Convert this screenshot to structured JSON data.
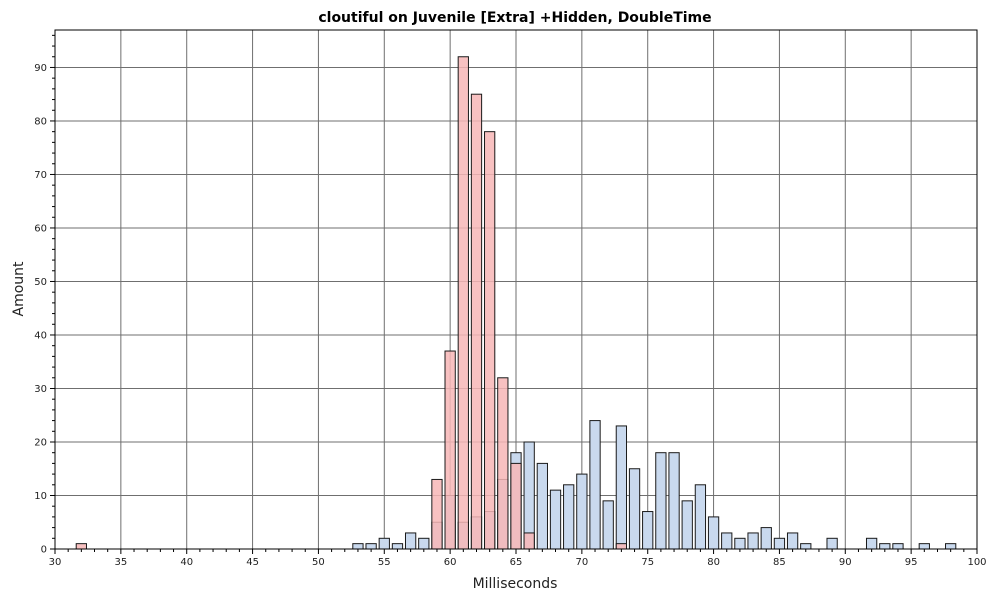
{
  "chart_data": {
    "type": "bar",
    "title": "cloutiful on Juvenile [Extra] +Hidden, DoubleTime",
    "xlabel": "Milliseconds",
    "ylabel": "Amount",
    "xlim": [
      30,
      100
    ],
    "ylim": [
      0,
      97
    ],
    "x_ticks": [
      30,
      35,
      40,
      45,
      50,
      55,
      60,
      65,
      70,
      75,
      80,
      85,
      90,
      95,
      100
    ],
    "y_ticks": [
      0,
      10,
      20,
      30,
      40,
      50,
      60,
      70,
      80,
      90
    ],
    "grid": true,
    "legend": "none",
    "series": [
      {
        "color": "#c9d9ee",
        "points": [
          {
            "x": 53,
            "y": 1
          },
          {
            "x": 54,
            "y": 1
          },
          {
            "x": 55,
            "y": 2
          },
          {
            "x": 56,
            "y": 1
          },
          {
            "x": 57,
            "y": 3
          },
          {
            "x": 58,
            "y": 2
          },
          {
            "x": 59,
            "y": 5
          },
          {
            "x": 60,
            "y": 10
          },
          {
            "x": 61,
            "y": 5
          },
          {
            "x": 62,
            "y": 6
          },
          {
            "x": 63,
            "y": 7
          },
          {
            "x": 64,
            "y": 13
          },
          {
            "x": 65,
            "y": 18
          },
          {
            "x": 66,
            "y": 20
          },
          {
            "x": 67,
            "y": 16
          },
          {
            "x": 68,
            "y": 11
          },
          {
            "x": 69,
            "y": 12
          },
          {
            "x": 70,
            "y": 14
          },
          {
            "x": 71,
            "y": 24
          },
          {
            "x": 72,
            "y": 9
          },
          {
            "x": 73,
            "y": 23
          },
          {
            "x": 74,
            "y": 15
          },
          {
            "x": 75,
            "y": 7
          },
          {
            "x": 76,
            "y": 18
          },
          {
            "x": 77,
            "y": 18
          },
          {
            "x": 78,
            "y": 9
          },
          {
            "x": 79,
            "y": 12
          },
          {
            "x": 80,
            "y": 6
          },
          {
            "x": 81,
            "y": 3
          },
          {
            "x": 82,
            "y": 2
          },
          {
            "x": 83,
            "y": 3
          },
          {
            "x": 84,
            "y": 4
          },
          {
            "x": 85,
            "y": 2
          },
          {
            "x": 86,
            "y": 3
          },
          {
            "x": 87,
            "y": 1
          },
          {
            "x": 89,
            "y": 2
          },
          {
            "x": 92,
            "y": 2
          },
          {
            "x": 93,
            "y": 1
          },
          {
            "x": 94,
            "y": 1
          },
          {
            "x": 96,
            "y": 1
          },
          {
            "x": 98,
            "y": 1
          }
        ]
      },
      {
        "color": "#f7b6b6",
        "points": [
          {
            "x": 32,
            "y": 1
          },
          {
            "x": 59,
            "y": 13
          },
          {
            "x": 60,
            "y": 37
          },
          {
            "x": 61,
            "y": 92
          },
          {
            "x": 62,
            "y": 85
          },
          {
            "x": 63,
            "y": 78
          },
          {
            "x": 64,
            "y": 32
          },
          {
            "x": 65,
            "y": 16
          },
          {
            "x": 66,
            "y": 3
          },
          {
            "x": 73,
            "y": 1
          }
        ]
      }
    ]
  }
}
